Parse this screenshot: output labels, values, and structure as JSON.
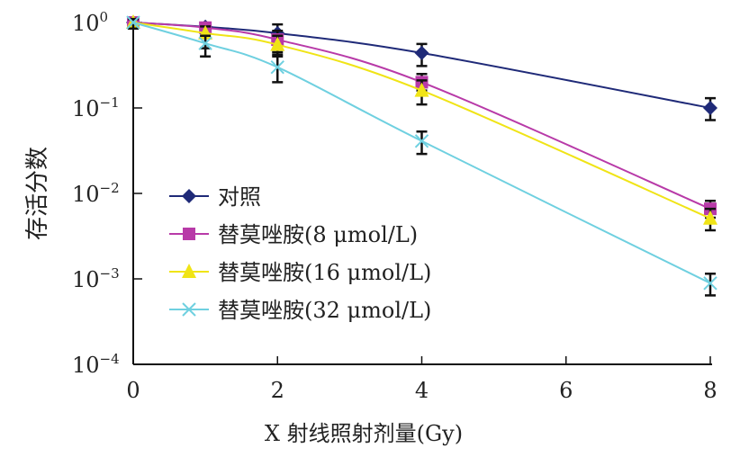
{
  "chart_data": {
    "type": "line",
    "title": "",
    "xlabel": "X 射线照射剂量(Gy)",
    "ylabel": "存活分数",
    "yscale": "log",
    "xlim": [
      0,
      8
    ],
    "ylim": [
      0.0001,
      1
    ],
    "x_ticks": [
      "0",
      "2",
      "4",
      "6",
      "8"
    ],
    "y_ticks": [
      {
        "base": "10",
        "exp": "0"
      },
      {
        "base": "10",
        "exp": "−1"
      },
      {
        "base": "10",
        "exp": "−2"
      },
      {
        "base": "10",
        "exp": "−3"
      },
      {
        "base": "10",
        "exp": "−4"
      }
    ],
    "legend_position": "center-left",
    "x": [
      0,
      1,
      2,
      4,
      8
    ],
    "series": [
      {
        "name": "对照",
        "color": "#1f2a78",
        "marker": "diamond",
        "values": [
          1,
          0.89,
          0.75,
          0.44,
          0.1
        ],
        "err_low": [
          0.85,
          0.8,
          0.6,
          0.31,
          0.072
        ],
        "err_high": [
          1.1,
          0.95,
          0.95,
          0.56,
          0.13
        ]
      },
      {
        "name": "替莫唑胺(8 μmol/L)",
        "color": "#b83aa8",
        "marker": "square",
        "values": [
          1,
          0.87,
          0.63,
          0.2,
          0.0066
        ],
        "err_low": [
          0.85,
          0.75,
          0.45,
          0.16,
          0.0052
        ],
        "err_high": [
          1.1,
          0.95,
          0.8,
          0.25,
          0.0082
        ]
      },
      {
        "name": "替莫唑胺(16 μmol/L)",
        "color": "#f0e416",
        "marker": "triangle",
        "values": [
          1,
          0.75,
          0.55,
          0.16,
          0.0051
        ],
        "err_low": [
          0.85,
          0.5,
          0.4,
          0.11,
          0.0037
        ],
        "err_high": [
          1.1,
          0.9,
          0.7,
          0.21,
          0.0066
        ]
      },
      {
        "name": "替莫唑胺(32 μmol/L)",
        "color": "#6fd0e0",
        "marker": "x",
        "values": [
          1,
          0.57,
          0.3,
          0.041,
          0.00089
        ],
        "err_low": [
          0.85,
          0.4,
          0.2,
          0.029,
          0.00064
        ],
        "err_high": [
          1.1,
          0.7,
          0.42,
          0.053,
          0.00115
        ]
      }
    ]
  }
}
